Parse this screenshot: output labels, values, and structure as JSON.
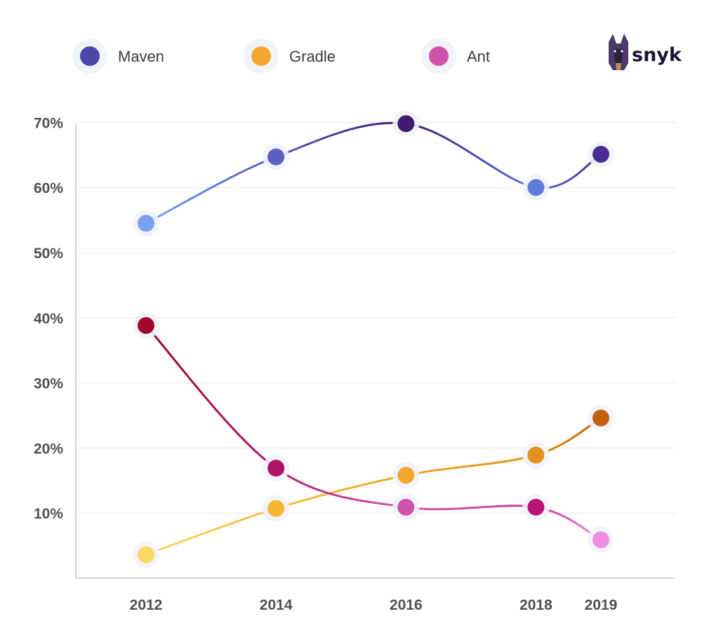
{
  "chart_data": {
    "type": "line",
    "x": [
      "2012",
      "2014",
      "2016",
      "2018",
      "2019"
    ],
    "series": [
      {
        "name": "Maven",
        "color": "#4b46a8",
        "values": [
          54.5,
          64.7,
          69.8,
          60.0,
          65.1
        ]
      },
      {
        "name": "Gradle",
        "color": "#f2a72f",
        "values": [
          3.6,
          10.7,
          15.8,
          18.9,
          24.6
        ]
      },
      {
        "name": "Ant",
        "color": "#cf53aa",
        "values": [
          38.8,
          16.9,
          10.9,
          10.9,
          5.9
        ]
      }
    ],
    "point_colors": {
      "Maven": [
        "#79a2ee",
        "#5a5fc0",
        "#3f1a70",
        "#5f7ad9",
        "#4a2b94"
      ],
      "Gradle": [
        "#fbd860",
        "#f6b532",
        "#f2a72f",
        "#e3901e",
        "#c2600b"
      ],
      "Ant": [
        "#a0092c",
        "#ad1466",
        "#cf53aa",
        "#b81476",
        "#f08ee2"
      ]
    },
    "y_ticks": [
      "10%",
      "20%",
      "30%",
      "40%",
      "50%",
      "60%",
      "70%"
    ],
    "ylim": [
      0,
      70
    ],
    "grid": true,
    "legend_position": "top",
    "title": "",
    "xlabel": "",
    "ylabel": ""
  },
  "brand": {
    "logo_text": "snyk"
  }
}
